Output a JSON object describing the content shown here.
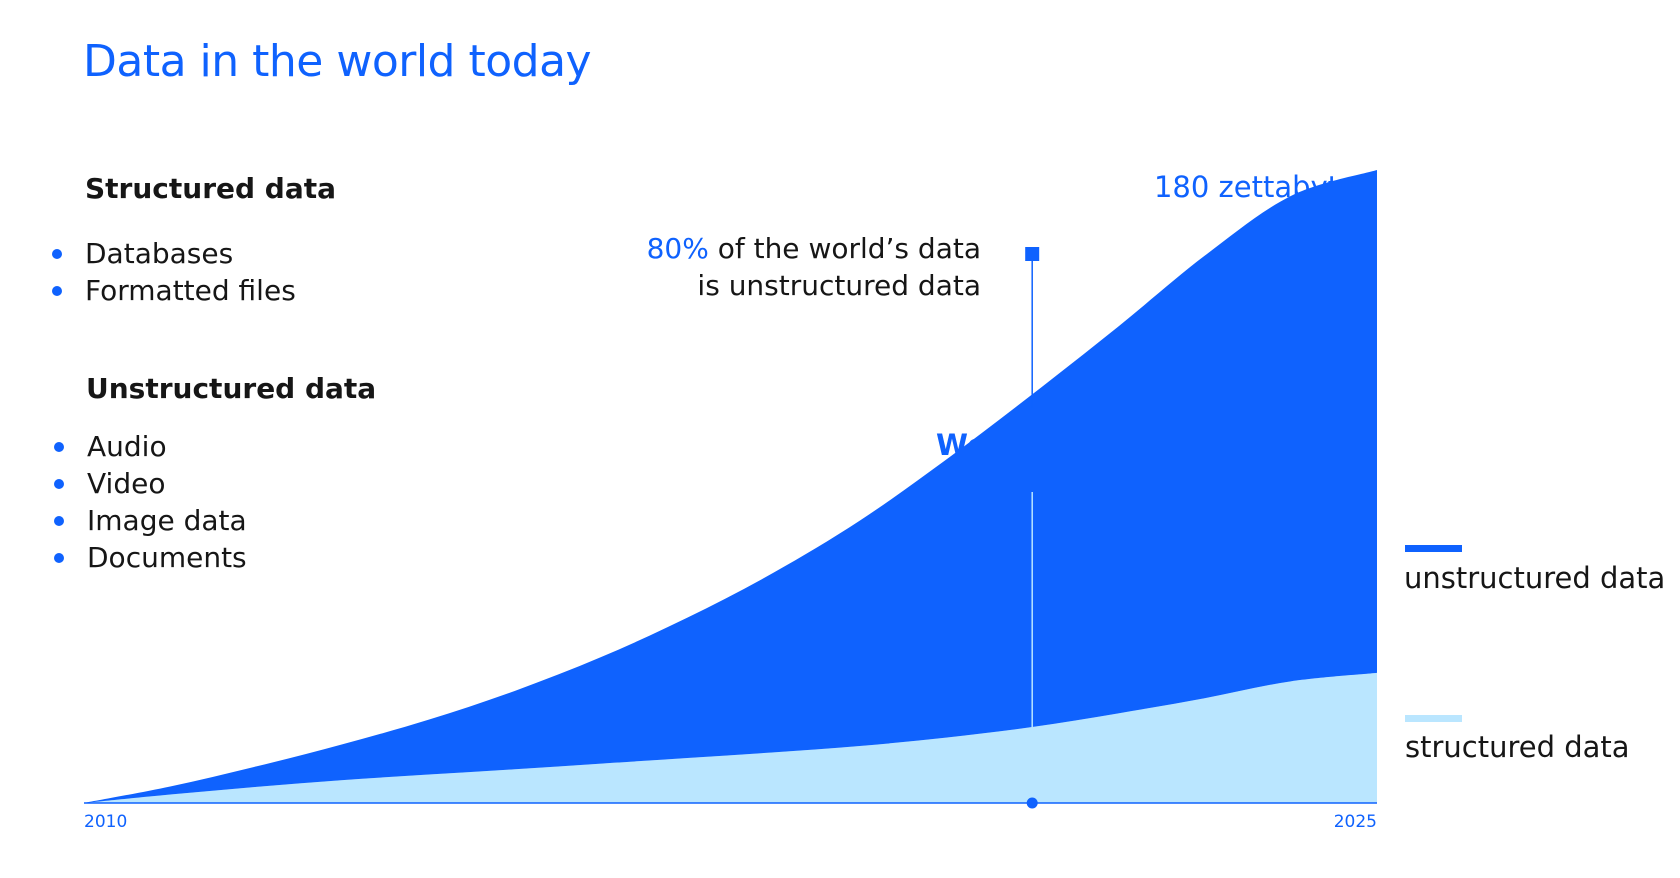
{
  "title": "Data in the world today",
  "structured": {
    "heading": "Structured data",
    "items": [
      "Databases",
      "Formatted files"
    ]
  },
  "unstructured": {
    "heading": "Unstructured data",
    "items": [
      "Audio",
      "Video",
      "Image data",
      "Documents"
    ]
  },
  "annotation": {
    "highlight": "80%",
    "line1_rest": " of the world’s data",
    "line2": "is unstructured data"
  },
  "marker_label": "We are here",
  "colors": {
    "unstructured": "#0f62fe",
    "structured": "#bae6ff",
    "accent": "#0f62fe",
    "text": "#161616"
  },
  "chart_data": {
    "type": "area",
    "stacked": true,
    "x": [
      2010,
      2011,
      2012,
      2013,
      2014,
      2015,
      2016,
      2017,
      2018,
      2019,
      2020,
      2021,
      2022,
      2023,
      2024,
      2025
    ],
    "series": [
      {
        "name": "structured data",
        "values": [
          0,
          2.4,
          4.6,
          6.5,
          8.1,
          9.6,
          11.2,
          12.8,
          14.4,
          16.2,
          18.6,
          21.6,
          25.5,
          29.8,
          34.6,
          37.0
        ]
      },
      {
        "name": "unstructured data",
        "values": [
          0,
          2.3,
          5.8,
          10.2,
          15.6,
          22.3,
          30.3,
          39.9,
          51.1,
          64.1,
          79.0,
          94.6,
          110.0,
          125.8,
          138.0,
          143.0
        ]
      }
    ],
    "x_tick_labels": [
      "2010",
      "2025"
    ],
    "xlim": [
      2010,
      2025
    ],
    "ylim": [
      0,
      180
    ],
    "top_label": "180 zettabytes",
    "marker_x": 2021,
    "grid": false,
    "legend_placement": "right"
  }
}
